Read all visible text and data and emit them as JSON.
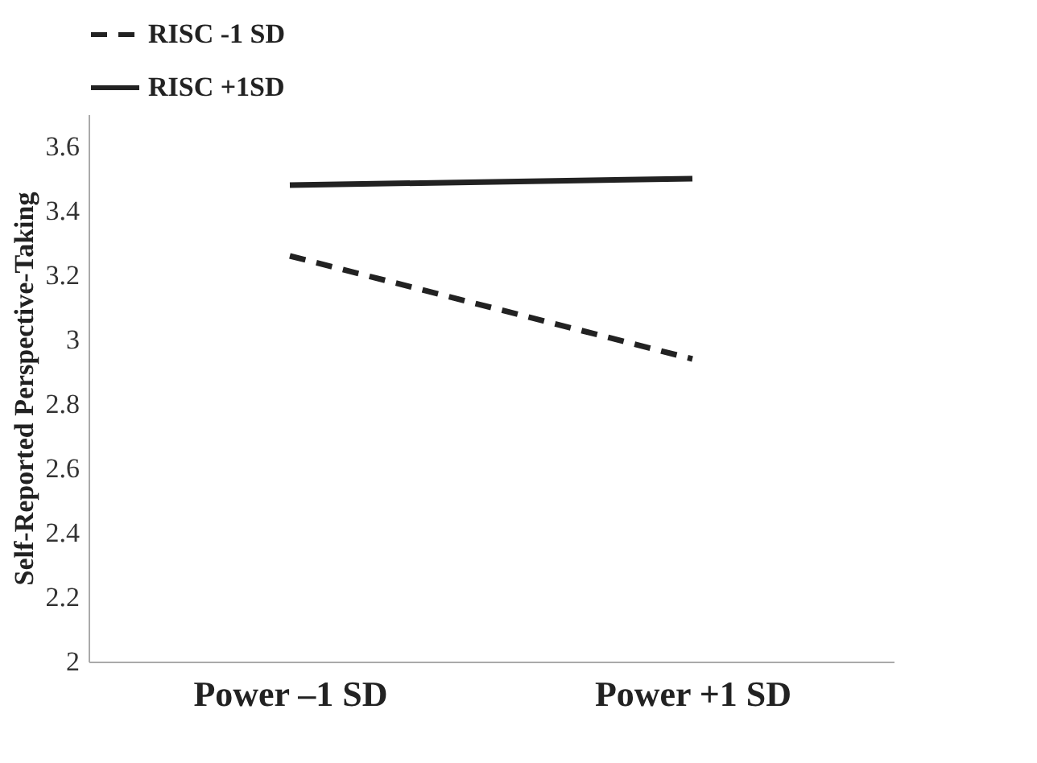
{
  "chart_data": {
    "type": "line",
    "ylabel": "Self-Reported Perspective-Taking",
    "categories": [
      "Power –1 SD",
      "Power +1 SD"
    ],
    "series": [
      {
        "name": "RISC -1 SD",
        "color": "#222222",
        "line_style": "dashed",
        "values": [
          3.26,
          2.94
        ]
      },
      {
        "name": "RISC +1SD",
        "color": "#222222",
        "line_style": "solid",
        "values": [
          3.48,
          3.5
        ]
      }
    ],
    "ylim": [
      2,
      3.7
    ],
    "yticks": [
      2,
      2.2,
      2.4,
      2.6,
      2.8,
      3,
      3.2,
      3.4,
      3.6
    ],
    "grid": false,
    "legend": "top left",
    "marker": "none"
  }
}
